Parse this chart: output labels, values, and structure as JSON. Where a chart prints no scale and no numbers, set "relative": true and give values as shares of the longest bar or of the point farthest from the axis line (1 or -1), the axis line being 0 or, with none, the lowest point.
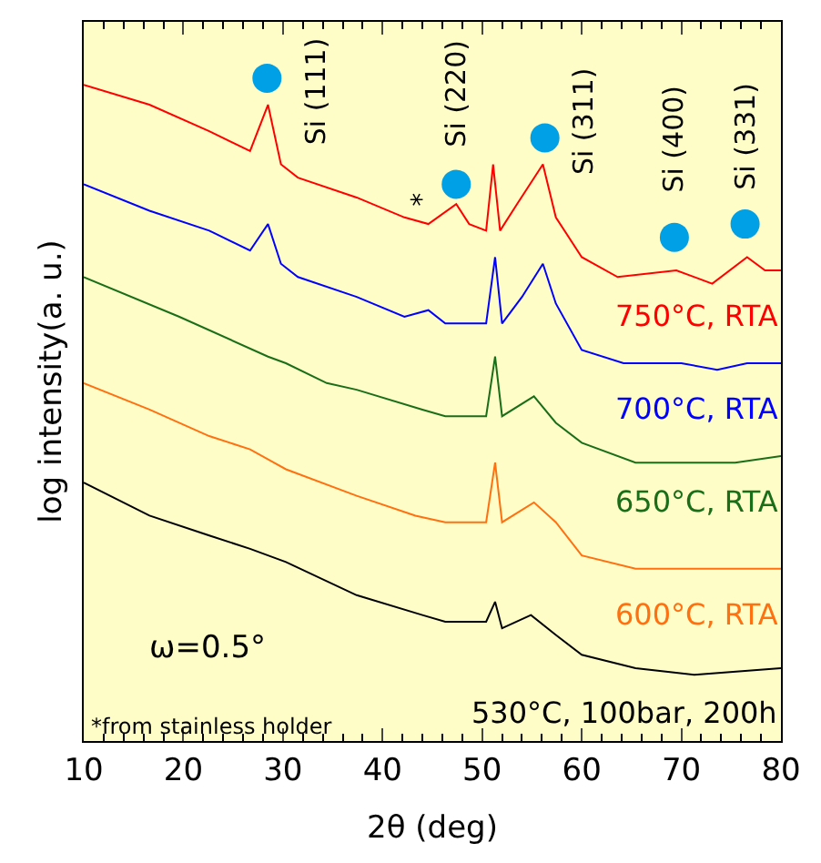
{
  "chart_data": {
    "type": "line",
    "relative": true,
    "xlabel": "2θ (deg)",
    "ylabel": "log intensity(a. u.)",
    "xlim": [
      10,
      80
    ],
    "xticks": [
      10,
      20,
      30,
      40,
      50,
      60,
      70,
      80
    ],
    "grid": false,
    "legend": false,
    "marker": "none",
    "line_style": "solid",
    "series": [
      {
        "name": "750°C, RTA",
        "color": "#ff0000",
        "x": [
          10,
          16.6,
          22.6,
          26.7,
          28.5,
          29.8,
          31.5,
          37.4,
          42.2,
          44.6,
          47.4,
          48.7,
          50.4,
          51.1,
          51.8,
          53.5,
          56.1,
          57.4,
          60.0,
          63.6,
          69.5,
          73.1,
          76.6,
          78.4,
          80
        ],
        "values": [
          0.99,
          0.96,
          0.92,
          0.89,
          0.96,
          0.87,
          0.85,
          0.82,
          0.79,
          0.78,
          0.81,
          0.78,
          0.77,
          0.87,
          0.77,
          0.81,
          0.87,
          0.79,
          0.73,
          0.7,
          0.71,
          0.69,
          0.73,
          0.71,
          0.71
        ]
      },
      {
        "name": "700°C, RTA",
        "color": "#0000ff",
        "x": [
          10,
          16.6,
          22.6,
          26.7,
          28.5,
          29.8,
          31.5,
          37.4,
          42.2,
          44.6,
          46.3,
          48.1,
          50.4,
          51.3,
          52.0,
          54.0,
          56.1,
          57.4,
          60.0,
          64.2,
          70.0,
          73.6,
          76.6,
          80
        ],
        "values": [
          0.84,
          0.8,
          0.77,
          0.74,
          0.78,
          0.72,
          0.7,
          0.67,
          0.64,
          0.65,
          0.63,
          0.63,
          0.63,
          0.73,
          0.63,
          0.67,
          0.72,
          0.66,
          0.59,
          0.57,
          0.57,
          0.56,
          0.57,
          0.57
        ]
      },
      {
        "name": "650°C, RTA",
        "color": "#1a6e1a",
        "x": [
          10,
          19.6,
          28.5,
          30.3,
          34.4,
          37.4,
          44.0,
          46.3,
          50.4,
          51.3,
          52.0,
          55.2,
          57.4,
          60.0,
          65.4,
          71.3,
          75.4,
          80
        ],
        "values": [
          0.7,
          0.64,
          0.58,
          0.57,
          0.54,
          0.53,
          0.5,
          0.49,
          0.49,
          0.58,
          0.49,
          0.52,
          0.48,
          0.45,
          0.42,
          0.42,
          0.42,
          0.43
        ]
      },
      {
        "name": "600°C, RTA",
        "color": "#ff7010",
        "x": [
          10,
          16.6,
          22.6,
          26.7,
          30.3,
          37.4,
          43.3,
          46.3,
          50.4,
          51.3,
          52.0,
          55.2,
          57.4,
          60.0,
          65.4,
          71.3,
          80
        ],
        "values": [
          0.54,
          0.5,
          0.46,
          0.44,
          0.41,
          0.37,
          0.34,
          0.33,
          0.33,
          0.42,
          0.33,
          0.36,
          0.33,
          0.28,
          0.26,
          0.26,
          0.26
        ]
      },
      {
        "name": "530°C, 100bar, 200h",
        "color": "#000000",
        "x": [
          10,
          16.6,
          22.6,
          26.7,
          30.3,
          37.4,
          44.0,
          46.3,
          50.4,
          51.3,
          52.0,
          54.9,
          57.4,
          60.0,
          65.4,
          71.3,
          80
        ],
        "values": [
          0.39,
          0.34,
          0.31,
          0.29,
          0.27,
          0.22,
          0.19,
          0.18,
          0.18,
          0.21,
          0.17,
          0.19,
          0.16,
          0.13,
          0.11,
          0.1,
          0.11
        ]
      },
      {
        "type": "scatter",
        "marker": "circle",
        "color": "#00a0e6",
        "x": [
          28.4,
          47.4,
          56.3,
          69.3,
          76.4
        ],
        "values": [
          1.0,
          0.84,
          0.91,
          0.76,
          0.78
        ]
      }
    ],
    "annotations": [
      {
        "text": "Si (111)",
        "x": 28.4,
        "y": 1.0
      },
      {
        "text": "Si (220)",
        "x": 47.4,
        "y": 0.84
      },
      {
        "text": "Si (311)",
        "x": 56.3,
        "y": 0.91
      },
      {
        "text": "Si (400)",
        "x": 69.3,
        "y": 0.76
      },
      {
        "text": "Si (331)",
        "x": 76.4,
        "y": 0.78
      },
      {
        "text": "*",
        "x": 44.6,
        "y": 0.78
      },
      "ω=0.5°",
      "*from stainless holder"
    ]
  }
}
